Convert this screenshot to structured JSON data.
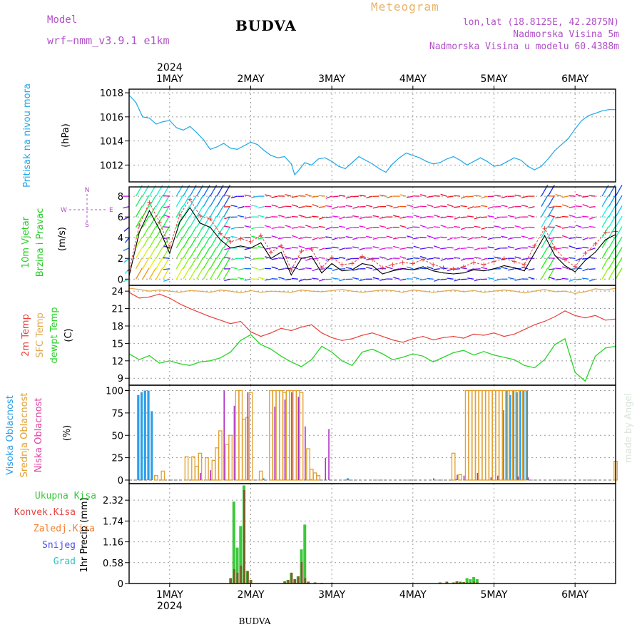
{
  "header": {
    "model_label": "Model",
    "model_name": "wrf−nmm_v3.9.1  e1km",
    "station": "BUDVA",
    "product": "Meteogram",
    "coords": "lon,lat (18.8125E, 42.2875N)",
    "elevation": "Nadmorska Visina 5m",
    "model_elevation": "Nadmorska Visina u modelu 60.4388m"
  },
  "footer": {
    "station": "BUDVA",
    "credit": "made by Angel"
  },
  "colors": {
    "pressure": "#1ea8e8",
    "temp2m": "#e8423a",
    "sfc": "#e0a850",
    "dew": "#28d428",
    "high_cloud": "#2e9ee8",
    "mid_cloud": "#e0a030",
    "low_cloud": "#b030c8",
    "total_precip": "#3cc83c",
    "conv_precip": "#e84040",
    "frozen": "#f08030",
    "snow": "#5050e0",
    "grad": "#30c0c0",
    "wind_speed": "#000000",
    "wind_gust": "#e84040"
  },
  "time_axis": {
    "year": "2024",
    "days": [
      "1MAY",
      "2MAY",
      "3MAY",
      "4MAY",
      "5MAY",
      "6MAY"
    ],
    "start_hour": -12,
    "end_hour": 132
  },
  "chart_data": [
    {
      "type": "line",
      "panel": "pressure",
      "ylabel_main": "Pritisak na nivou mora",
      "ylabel_unit": "(hPa)",
      "yticks": [
        1012,
        1014,
        1016,
        1018
      ],
      "ylim": [
        1010.6,
        1018.3
      ],
      "grid": true,
      "x_hours": [
        -12,
        -10,
        -8,
        -6,
        -4,
        -2,
        0,
        2,
        4,
        6,
        8,
        10,
        12,
        14,
        16,
        18,
        20,
        22,
        24,
        26,
        28,
        30,
        32,
        34,
        36,
        37,
        38,
        40,
        42,
        44,
        46,
        48,
        50,
        52,
        54,
        56,
        58,
        60,
        62,
        64,
        66,
        68,
        70,
        72,
        74,
        76,
        78,
        80,
        82,
        84,
        86,
        88,
        90,
        92,
        94,
        96,
        98,
        100,
        102,
        104,
        106,
        108,
        110,
        112,
        114,
        116,
        118,
        120,
        122,
        124,
        126,
        128,
        130,
        132
      ],
      "series": [
        {
          "values": [
            1017.8,
            1017.2,
            1016.0,
            1015.9,
            1015.4,
            1015.6,
            1015.7,
            1015.1,
            1014.9,
            1015.2,
            1014.7,
            1014.1,
            1013.3,
            1013.5,
            1013.8,
            1013.4,
            1013.3,
            1013.6,
            1013.9,
            1013.7,
            1013.2,
            1012.8,
            1012.6,
            1012.7,
            1012.1,
            1011.2,
            1011.5,
            1012.2,
            1012.0,
            1012.5,
            1012.6,
            1012.3,
            1011.9,
            1011.7,
            1012.2,
            1012.7,
            1012.4,
            1012.1,
            1011.7,
            1011.4,
            1012.1,
            1012.6,
            1013.0,
            1012.8,
            1012.6,
            1012.3,
            1012.1,
            1012.2,
            1012.5,
            1012.7,
            1012.4,
            1012.0,
            1012.3,
            1012.6,
            1012.3,
            1011.9,
            1012.0,
            1012.3,
            1012.6,
            1012.4,
            1011.9,
            1011.6,
            1011.9,
            1012.5,
            1013.2,
            1013.7,
            1014.2,
            1015.0,
            1015.7,
            1016.1,
            1016.3,
            1016.5,
            1016.6,
            1016.6
          ]
        }
      ]
    },
    {
      "type": "line",
      "panel": "wind",
      "ylabel_main": "10m Vjetar",
      "ylabel_sub": "Brzina i Pravac",
      "ylabel_unit": "(m/s)",
      "compass": {
        "n": "N",
        "s": "S",
        "e": "E",
        "w": "W"
      },
      "yticks": [
        0,
        2,
        4,
        6,
        8
      ],
      "ylim": [
        -0.6,
        8.9
      ],
      "grid": true,
      "x_hours": [
        -12,
        -9,
        -6,
        -3,
        0,
        3,
        6,
        9,
        12,
        15,
        18,
        21,
        24,
        27,
        30,
        33,
        36,
        39,
        42,
        45,
        48,
        51,
        54,
        57,
        60,
        63,
        66,
        69,
        72,
        75,
        78,
        81,
        84,
        87,
        90,
        93,
        96,
        99,
        102,
        105,
        108,
        111,
        114,
        117,
        120,
        123,
        126,
        129,
        132
      ],
      "series": [
        {
          "name": "speed",
          "values": [
            0.3,
            4.5,
            6.6,
            4.8,
            2.5,
            5.5,
            6.9,
            5.4,
            5.0,
            3.8,
            3.0,
            3.2,
            3.0,
            3.5,
            2.0,
            2.6,
            0.4,
            2.0,
            2.2,
            0.6,
            1.5,
            0.8,
            0.9,
            1.5,
            1.3,
            0.5,
            0.8,
            1.0,
            0.9,
            1.2,
            0.8,
            0.6,
            0.5,
            0.6,
            0.9,
            0.8,
            1.0,
            1.3,
            1.1,
            0.8,
            2.5,
            4.2,
            2.3,
            1.3,
            0.7,
            1.8,
            2.6,
            3.8,
            4.3
          ]
        },
        {
          "name": "gust",
          "values": [
            0.8,
            5.2,
            7.4,
            5.5,
            3.1,
            6.2,
            7.7,
            6.1,
            5.8,
            4.4,
            3.6,
            3.9,
            3.6,
            4.2,
            2.6,
            3.2,
            0.9,
            2.7,
            2.9,
            1.1,
            2.1,
            1.4,
            1.5,
            2.2,
            1.9,
            1.1,
            1.4,
            1.6,
            1.5,
            1.9,
            1.4,
            1.1,
            1.0,
            1.2,
            1.6,
            1.4,
            1.7,
            2.0,
            1.7,
            1.4,
            3.2,
            4.9,
            3.0,
            1.9,
            1.2,
            2.5,
            3.4,
            4.5,
            4.6
          ]
        }
      ],
      "arrow_levels": [
        0,
        1,
        2,
        3,
        4,
        5,
        6,
        7,
        8
      ]
    },
    {
      "type": "line",
      "panel": "temperature",
      "ylabel_main": "2m Temp",
      "ylabel_sub": "SFC Temp",
      "ylabel_sub2": "dewpt Temp",
      "ylabel_unit": "(C)",
      "yticks": [
        9,
        12,
        15,
        18,
        21,
        24
      ],
      "ylim": [
        7.8,
        25.0
      ],
      "grid": true,
      "x_hours": [
        -12,
        -9,
        -6,
        -3,
        0,
        3,
        6,
        9,
        12,
        15,
        18,
        21,
        24,
        27,
        30,
        33,
        36,
        39,
        42,
        45,
        48,
        51,
        54,
        57,
        60,
        63,
        66,
        69,
        72,
        75,
        78,
        81,
        84,
        87,
        90,
        93,
        96,
        99,
        102,
        105,
        108,
        111,
        114,
        117,
        120,
        123,
        126,
        129,
        132
      ],
      "series": [
        {
          "name": "2m Temp",
          "values": [
            23.8,
            22.8,
            23.0,
            23.5,
            22.8,
            21.8,
            21.0,
            20.3,
            19.6,
            19.0,
            18.4,
            18.8,
            17.0,
            16.2,
            16.8,
            17.6,
            17.2,
            17.8,
            18.2,
            16.8,
            16.0,
            15.5,
            15.8,
            16.4,
            16.8,
            16.2,
            15.6,
            15.2,
            15.8,
            16.2,
            15.6,
            16.0,
            16.2,
            15.9,
            16.6,
            16.4,
            16.8,
            16.2,
            16.6,
            17.4,
            18.2,
            18.8,
            19.6,
            20.6,
            19.8,
            19.4,
            19.8,
            19.0,
            19.2
          ]
        },
        {
          "name": "SFC Temp",
          "values": [
            24.5,
            24.3,
            24.0,
            24.2,
            24.0,
            23.8,
            24.1,
            24.0,
            23.8,
            24.2,
            24.0,
            23.7,
            24.1,
            23.8,
            24.0,
            23.9,
            23.8,
            24.2,
            24.0,
            23.9,
            24.1,
            24.3,
            24.0,
            23.8,
            24.0,
            24.2,
            24.1,
            23.8,
            24.2,
            24.0,
            23.8,
            24.0,
            24.2,
            23.9,
            24.1,
            23.8,
            24.0,
            24.2,
            24.0,
            23.7,
            24.0,
            24.3,
            23.9,
            24.0,
            23.6,
            23.9,
            24.4,
            24.2,
            24.5
          ]
        },
        {
          "name": "dewpt Temp",
          "values": [
            13.2,
            12.2,
            12.9,
            11.6,
            12.0,
            11.5,
            11.2,
            11.8,
            12.0,
            12.5,
            13.5,
            15.5,
            16.5,
            14.8,
            14.0,
            12.8,
            11.8,
            11.0,
            12.2,
            14.5,
            13.5,
            12.0,
            11.2,
            13.5,
            14.0,
            13.2,
            12.2,
            12.6,
            13.2,
            12.8,
            11.8,
            12.6,
            13.4,
            13.8,
            13.0,
            13.6,
            13.0,
            12.6,
            12.2,
            11.2,
            10.8,
            12.2,
            14.8,
            15.8,
            10.0,
            8.5,
            12.8,
            14.2,
            14.5
          ]
        }
      ]
    },
    {
      "type": "bar",
      "panel": "cloud",
      "ylabel_main": "Visoka Oblacnost",
      "ylabel_sub": "Srednja Oblacnost",
      "ylabel_sub2": "Niska Oblacnost",
      "ylabel_unit": "(%)",
      "yticks": [
        0,
        25,
        50,
        75,
        100
      ],
      "ylim": [
        -4,
        106
      ],
      "grid": true,
      "series": [
        {
          "name": "Visoka Oblacnost",
          "x": [
            -9,
            -8,
            -7,
            -6,
            -5,
            28,
            42,
            53,
            85,
            99,
            100,
            101,
            102,
            103,
            104,
            105,
            106
          ],
          "values": [
            95,
            98,
            100,
            100,
            77,
            2,
            1,
            2,
            1,
            78,
            100,
            95,
            100,
            98,
            100,
            100,
            100
          ]
        },
        {
          "name": "Srednja Oblacnost",
          "x": [
            -4,
            -2,
            5,
            7,
            8,
            9,
            11,
            13,
            14,
            15,
            17,
            18,
            20,
            21,
            22,
            23,
            24,
            27,
            30,
            31,
            32,
            33,
            34,
            35,
            36,
            37,
            38,
            39,
            41,
            42,
            43,
            44,
            84,
            86,
            88,
            89,
            90,
            91,
            92,
            93,
            94,
            95,
            96,
            97,
            98,
            99,
            100,
            101,
            102,
            103,
            104,
            105,
            132
          ],
          "values": [
            5,
            10,
            26,
            26,
            15,
            30,
            25,
            22,
            36,
            55,
            40,
            50,
            100,
            100,
            68,
            70,
            98,
            10,
            100,
            100,
            100,
            100,
            98,
            100,
            100,
            100,
            100,
            98,
            35,
            12,
            8,
            5,
            30,
            6,
            100,
            100,
            100,
            100,
            100,
            100,
            100,
            100,
            100,
            100,
            100,
            100,
            100,
            100,
            100,
            100,
            100,
            100,
            21
          ]
        },
        {
          "name": "Niska Oblacnost",
          "x": [
            9,
            12,
            16,
            19,
            23,
            31,
            34,
            36,
            38,
            40,
            46,
            47,
            78,
            85,
            87,
            91,
            95,
            97,
            103,
            106
          ],
          "values": [
            8,
            11,
            100,
            83,
            98,
            82,
            90,
            98,
            93,
            60,
            25,
            57,
            2,
            6,
            5,
            8,
            3,
            5,
            4,
            3
          ]
        }
      ]
    },
    {
      "type": "bar",
      "panel": "precip",
      "ylabel_main": "1hr Precip",
      "ylabel_unit": "(mm)",
      "legend": [
        "Ukupna  Kisa",
        "Konvek.Kisa",
        "Zaledj.Kisa",
        "Snijeg",
        "Grad"
      ],
      "yticks": [
        0,
        0.58,
        1.16,
        1.74,
        2.32
      ],
      "ylim": [
        0,
        2.78
      ],
      "grid": true,
      "series": [
        {
          "name": "Ukupna  Kisa",
          "x": [
            18,
            19,
            20,
            21,
            22,
            23,
            24,
            34,
            35,
            36,
            37,
            38,
            39,
            40,
            41,
            43,
            45,
            48,
            80,
            82,
            84,
            85,
            86,
            87,
            88,
            89,
            90,
            91
          ],
          "values": [
            0.15,
            2.28,
            1.0,
            1.6,
            2.73,
            0.35,
            0.1,
            0.06,
            0.1,
            0.3,
            0.12,
            0.2,
            0.95,
            1.64,
            0.05,
            0.03,
            0.02,
            0.02,
            0.03,
            0.05,
            0.03,
            0.06,
            0.05,
            0.04,
            0.15,
            0.12,
            0.18,
            0.12
          ]
        },
        {
          "name": "Konvek.Kisa",
          "x": [
            18,
            19,
            20,
            21,
            22,
            23,
            24,
            34,
            35,
            36,
            37,
            38,
            39,
            40,
            41,
            43,
            45,
            48,
            80,
            82,
            84,
            85,
            86,
            87,
            88,
            89,
            90,
            91
          ],
          "values": [
            0.15,
            0.4,
            0.3,
            0.5,
            2.6,
            0.35,
            0.1,
            0.06,
            0.1,
            0.3,
            0.12,
            0.2,
            0.6,
            0.15,
            0.05,
            0.03,
            0.02,
            0.02,
            0.03,
            0.05,
            0.03,
            0.06,
            0.05,
            0.04,
            0.03,
            0.03,
            0.05,
            0.03
          ]
        }
      ]
    }
  ]
}
